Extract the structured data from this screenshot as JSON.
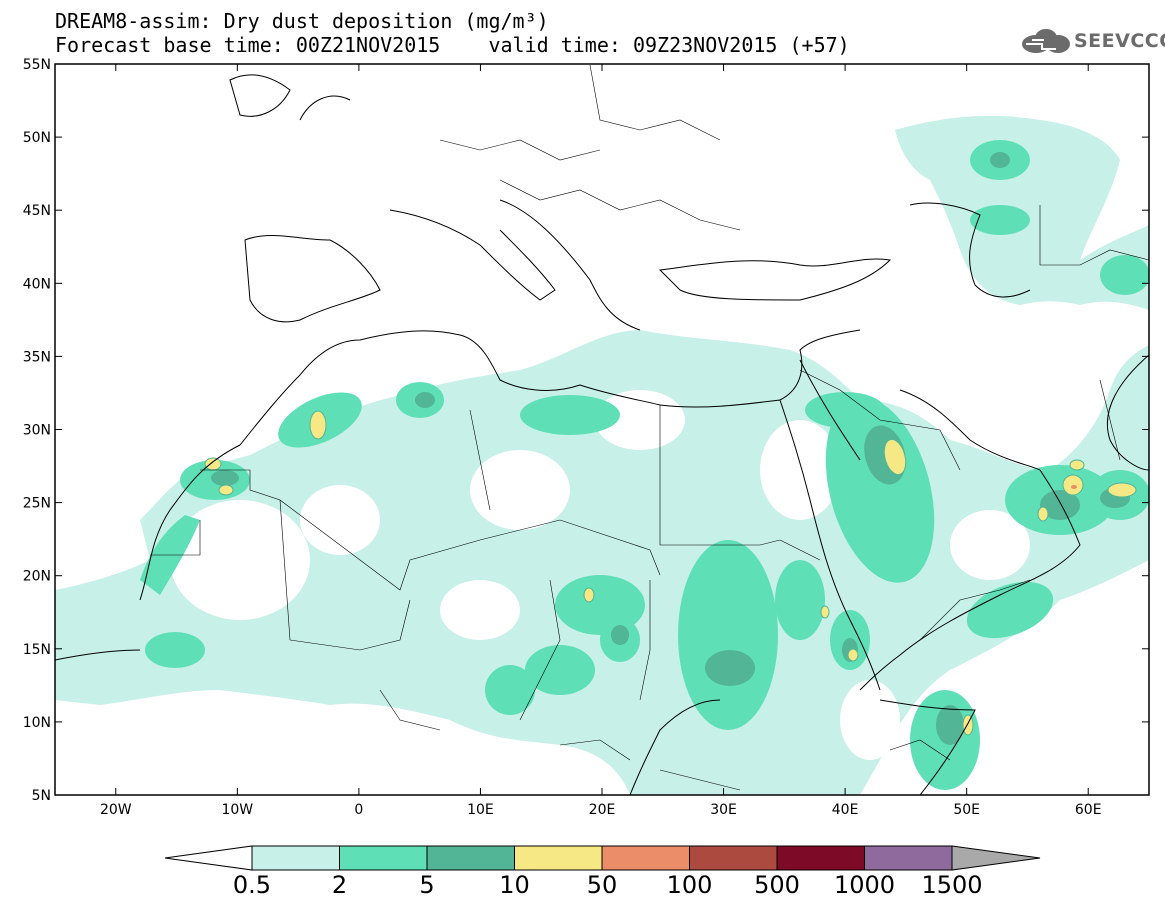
{
  "header": {
    "title": "DREAM8-assim: Dry dust deposition (mg/m³)",
    "subtitle": "Forecast base time: 00Z21NOV2015    valid time: 09Z23NOV2015 (+57)",
    "logo_text": "SEEVCCC",
    "logo_icon": "cloud-icon"
  },
  "map": {
    "lon_range": [
      -25,
      65
    ],
    "lat_range": [
      5,
      55
    ],
    "lat_labels": [
      "55N",
      "50N",
      "45N",
      "40N",
      "35N",
      "30N",
      "25N",
      "20N",
      "15N",
      "10N",
      "5N"
    ],
    "lon_labels": [
      "20W",
      "10W",
      "0",
      "10E",
      "20E",
      "30E",
      "40E",
      "50E",
      "60E"
    ]
  },
  "colorbar": {
    "labels": [
      "0.5",
      "2",
      "5",
      "10",
      "50",
      "100",
      "500",
      "1000",
      "1500"
    ],
    "colors": [
      "#c6f0e8",
      "#5fdfb6",
      "#52b595",
      "#f6e885",
      "#ea8d68",
      "#ac4a3f",
      "#7d0a26",
      "#8e6b9c",
      "#a9a9a9"
    ]
  }
}
